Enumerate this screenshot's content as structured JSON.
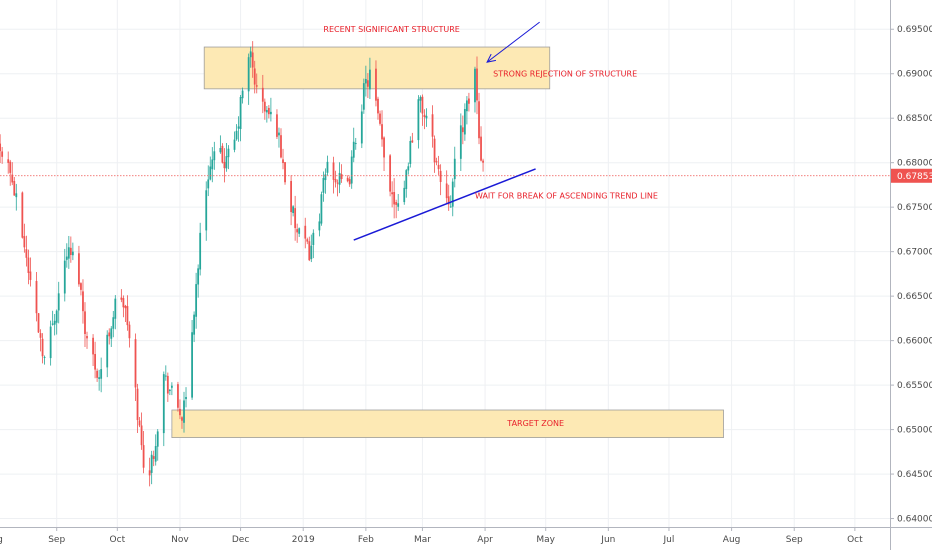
{
  "chart_data": {
    "type": "candlestick",
    "ylim": [
      0.6395,
      0.6975
    ],
    "x_range_days": [
      -3,
      433
    ],
    "y_ticks": [
      "0.69500",
      "0.69000",
      "0.68500",
      "0.68000",
      "0.67500",
      "0.67000",
      "0.66500",
      "0.66000",
      "0.65500",
      "0.65000",
      "0.64500",
      "0.64000"
    ],
    "x_ticks": [
      {
        "label": "Aug",
        "day": 0
      },
      {
        "label": "Sep",
        "day": 31
      },
      {
        "label": "Oct",
        "day": 61
      },
      {
        "label": "Nov",
        "day": 92
      },
      {
        "label": "Dec",
        "day": 122
      },
      {
        "label": "2019",
        "day": 153
      },
      {
        "label": "Feb",
        "day": 184
      },
      {
        "label": "Mar",
        "day": 212
      },
      {
        "label": "Apr",
        "day": 243
      },
      {
        "label": "May",
        "day": 273
      },
      {
        "label": "Jun",
        "day": 304
      },
      {
        "label": "Jul",
        "day": 334
      },
      {
        "label": "Aug",
        "day": 365
      },
      {
        "label": "Sep",
        "day": 396
      },
      {
        "label": "Oct",
        "day": 426
      }
    ],
    "last_price": "0.67853",
    "colors": {
      "up": "#26a69a",
      "down": "#ef5350",
      "zone_fill": "#fde9b4",
      "zone_stroke": "#9e9e9e",
      "trend": "#1a1ad6",
      "price_line": "#ef5350",
      "annotation": "#e8202a"
    },
    "anchors": [
      {
        "day": -3,
        "p": 0.681
      },
      {
        "day": 3,
        "p": 0.682
      },
      {
        "day": 8,
        "p": 0.679
      },
      {
        "day": 14,
        "p": 0.672
      },
      {
        "day": 20,
        "p": 0.664
      },
      {
        "day": 25,
        "p": 0.658
      },
      {
        "day": 30,
        "p": 0.663
      },
      {
        "day": 36,
        "p": 0.67
      },
      {
        "day": 41,
        "p": 0.669
      },
      {
        "day": 46,
        "p": 0.66
      },
      {
        "day": 52,
        "p": 0.656
      },
      {
        "day": 57,
        "p": 0.661
      },
      {
        "day": 62,
        "p": 0.666
      },
      {
        "day": 66,
        "p": 0.662
      },
      {
        "day": 71,
        "p": 0.652
      },
      {
        "day": 73,
        "p": 0.648
      },
      {
        "day": 76,
        "p": 0.644
      },
      {
        "day": 80,
        "p": 0.649
      },
      {
        "day": 84,
        "p": 0.656
      },
      {
        "day": 88,
        "p": 0.654
      },
      {
        "day": 93,
        "p": 0.6515
      },
      {
        "day": 95,
        "p": 0.653
      },
      {
        "day": 98,
        "p": 0.661
      },
      {
        "day": 103,
        "p": 0.674
      },
      {
        "day": 106,
        "p": 0.679
      },
      {
        "day": 110,
        "p": 0.681
      },
      {
        "day": 115,
        "p": 0.68
      },
      {
        "day": 120,
        "p": 0.683
      },
      {
        "day": 124,
        "p": 0.69
      },
      {
        "day": 127,
        "p": 0.692
      },
      {
        "day": 130,
        "p": 0.688
      },
      {
        "day": 134,
        "p": 0.686
      },
      {
        "day": 140,
        "p": 0.684
      },
      {
        "day": 145,
        "p": 0.677
      },
      {
        "day": 150,
        "p": 0.672
      },
      {
        "day": 156,
        "p": 0.67
      },
      {
        "day": 160,
        "p": 0.673
      },
      {
        "day": 165,
        "p": 0.68
      },
      {
        "day": 170,
        "p": 0.678
      },
      {
        "day": 175,
        "p": 0.677
      },
      {
        "day": 179,
        "p": 0.683
      },
      {
        "day": 183,
        "p": 0.688
      },
      {
        "day": 186,
        "p": 0.69
      },
      {
        "day": 190,
        "p": 0.685
      },
      {
        "day": 194,
        "p": 0.679
      },
      {
        "day": 198,
        "p": 0.676
      },
      {
        "day": 202,
        "p": 0.676
      },
      {
        "day": 206,
        "p": 0.682
      },
      {
        "day": 210,
        "p": 0.687
      },
      {
        "day": 214,
        "p": 0.685
      },
      {
        "day": 218,
        "p": 0.681
      },
      {
        "day": 222,
        "p": 0.677
      },
      {
        "day": 226,
        "p": 0.676
      },
      {
        "day": 230,
        "p": 0.683
      },
      {
        "day": 234,
        "p": 0.686
      },
      {
        "day": 236,
        "p": 0.688
      },
      {
        "day": 238,
        "p": 0.6905
      },
      {
        "day": 241,
        "p": 0.68
      },
      {
        "day": 243,
        "p": 0.67853
      }
    ],
    "zones": [
      {
        "name": "structure",
        "day_start": 104,
        "day_end": 275,
        "top": 0.693,
        "bottom": 0.6883
      },
      {
        "name": "target",
        "day_start": 88,
        "day_end": 361,
        "top": 0.6522,
        "bottom": 0.6491
      }
    ],
    "trend_line": {
      "day_start": 178,
      "p_start": 0.6713,
      "day_end": 268,
      "p_end": 0.6793
    },
    "arrow": {
      "day_start": 270,
      "p_start": 0.6958,
      "day_end": 244,
      "p_end": 0.6913
    },
    "annotations": [
      {
        "text": "RECENT SIGNIFICANT STRUCTURE",
        "day": 163,
        "p": 0.6947,
        "anchor": "start"
      },
      {
        "text": "STRONG REJECTION OF STRUCTURE",
        "day": 247,
        "p": 0.6897,
        "anchor": "start"
      },
      {
        "text": "WAIT FOR BREAK OF ASCENDING TREND LINE",
        "day": 238,
        "p": 0.676,
        "anchor": "start"
      },
      {
        "text": "TARGET ZONE",
        "day": 254,
        "p": 0.6504,
        "anchor": "start"
      }
    ]
  }
}
